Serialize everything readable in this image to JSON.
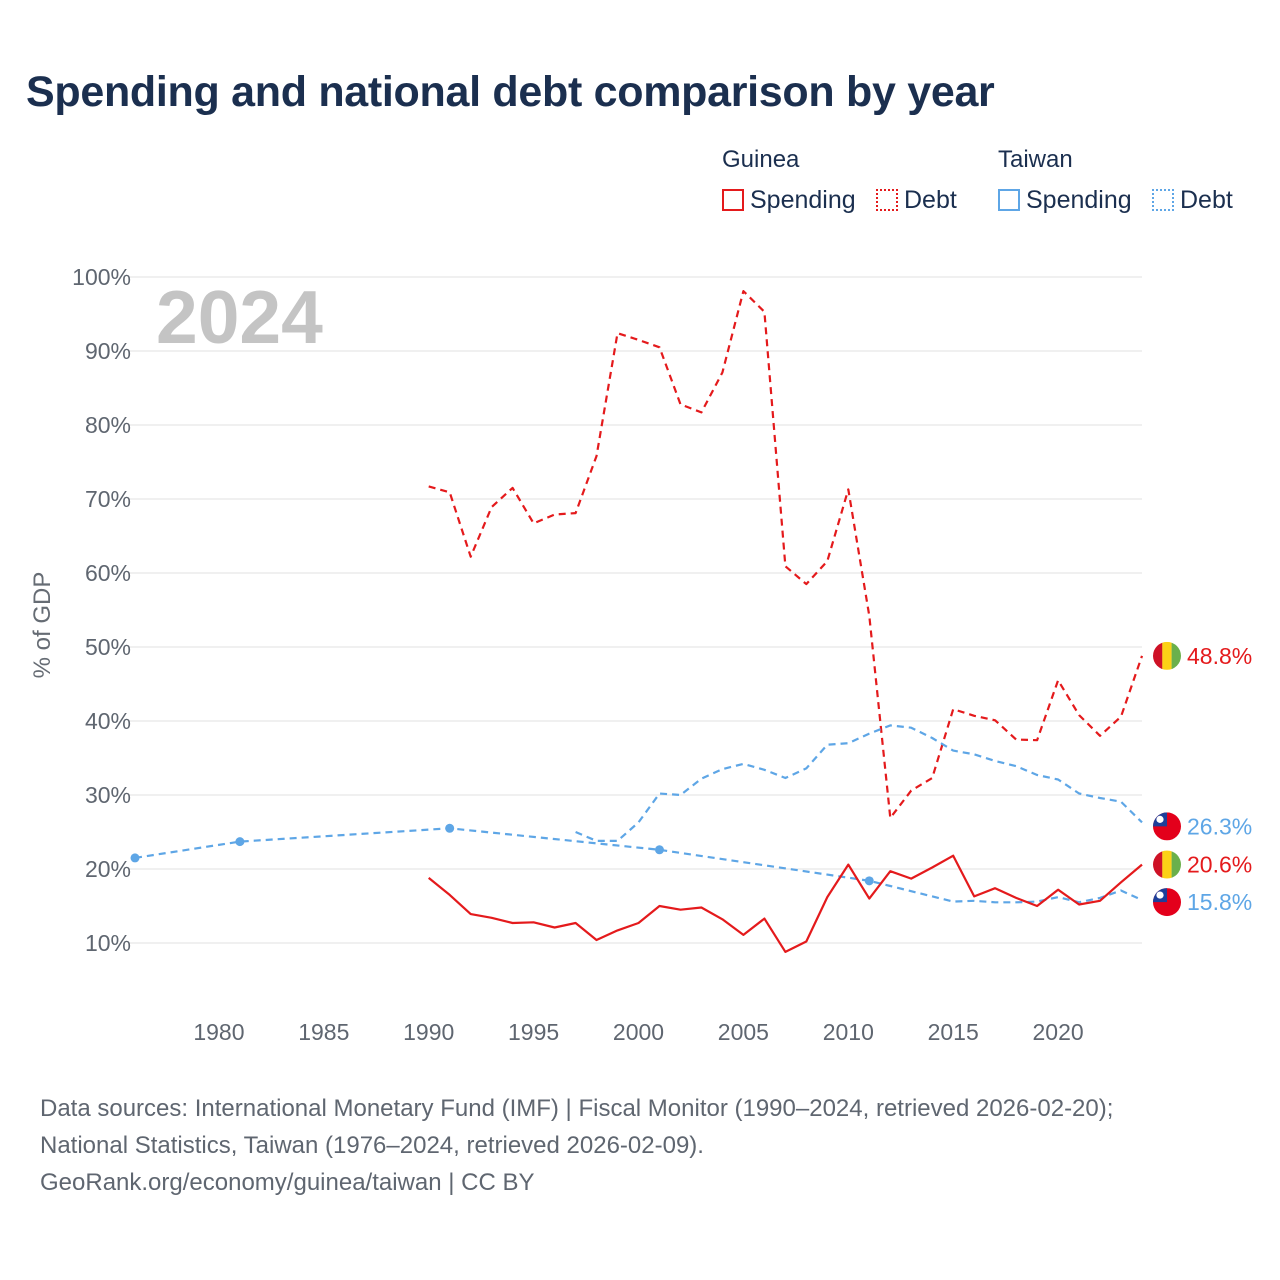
{
  "title": "Spending and national debt comparison by year",
  "legend": {
    "groups": [
      {
        "name": "Guinea",
        "color": "#e41a1c",
        "items": [
          {
            "label": "Spending",
            "style": "solid"
          },
          {
            "label": "Debt",
            "style": "dotted"
          }
        ]
      },
      {
        "name": "Taiwan",
        "color": "#5ea6e6",
        "items": [
          {
            "label": "Spending",
            "style": "solid"
          },
          {
            "label": "Debt",
            "style": "dotted"
          }
        ]
      }
    ]
  },
  "year_watermark": "2024",
  "source": {
    "line1": "Data sources: International Monetary Fund (IMF) | Fiscal Monitor (1990–2024, retrieved 2026-02-20);",
    "line2": "National Statistics, Taiwan (1976–2024, retrieved 2026-02-09).",
    "line3": "GeoRank.org/economy/guinea/taiwan | CC BY"
  },
  "chart_data": {
    "type": "line",
    "ylabel": "% of GDP",
    "xlabel": "",
    "xlim": [
      1976,
      2024
    ],
    "ylim": [
      0,
      100
    ],
    "x_ticks": [
      1980,
      1985,
      1990,
      1995,
      2000,
      2005,
      2010,
      2015,
      2020
    ],
    "x_tick_labels": [
      "1980",
      "1985",
      "1990",
      "1995",
      "2000",
      "2005",
      "2010",
      "2015",
      "2020"
    ],
    "y_ticks": [
      10,
      20,
      30,
      40,
      50,
      60,
      70,
      80,
      90,
      100
    ],
    "y_tick_labels": [
      "10%",
      "20%",
      "30%",
      "40%",
      "50%",
      "60%",
      "70%",
      "80%",
      "90%",
      "100%"
    ],
    "grid": true,
    "series": [
      {
        "name": "Guinea Debt",
        "country": "Guinea",
        "indicator": "Debt",
        "color": "#e41a1c",
        "dash": "dashed",
        "x": [
          1990,
          1991,
          1992,
          1993,
          1994,
          1995,
          1996,
          1997,
          1998,
          1999,
          2000,
          2001,
          2002,
          2003,
          2004,
          2005,
          2006,
          2007,
          2008,
          2009,
          2010,
          2011,
          2012,
          2013,
          2014,
          2015,
          2016,
          2017,
          2018,
          2019,
          2020,
          2021,
          2022,
          2023,
          2024
        ],
        "values": [
          71.7,
          70.9,
          62.2,
          68.9,
          71.5,
          66.7,
          67.9,
          68.1,
          75.8,
          92.4,
          91.5,
          90.5,
          82.8,
          81.7,
          87.1,
          98.1,
          95.3,
          60.9,
          58.5,
          61.6,
          71.3,
          54.2,
          26.9,
          30.6,
          32.3,
          41.6,
          40.7,
          40.1,
          37.5,
          37.4,
          45.5,
          40.8,
          38.0,
          40.6,
          48.8
        ],
        "end_label": "48.8%"
      },
      {
        "name": "Taiwan Debt",
        "country": "Taiwan",
        "indicator": "Debt",
        "color": "#5ea6e6",
        "dash": "dashed",
        "x": [
          1976,
          1981,
          1991,
          2001,
          2011,
          2015,
          2016,
          2017,
          2018,
          2019,
          2020,
          2021,
          2022,
          2023,
          2024
        ],
        "values": [
          21.5,
          23.7,
          25.5,
          22.6,
          18.4,
          15.6,
          15.7,
          15.5,
          15.5,
          15.6,
          16.2,
          15.5,
          16.1,
          17.1,
          15.8
        ],
        "markers": [
          1976,
          1981,
          1991,
          2001,
          2011
        ],
        "end_label": "15.8%"
      },
      {
        "name": "Taiwan Spending",
        "country": "Taiwan",
        "indicator": "Spending",
        "color": "#5ea6e6",
        "dash": "dashed",
        "x": [
          1997,
          1998,
          1999,
          2000,
          2001,
          2002,
          2003,
          2004,
          2005,
          2006,
          2007,
          2008,
          2009,
          2010,
          2011,
          2012,
          2013,
          2014,
          2015,
          2016,
          2017,
          2018,
          2019,
          2020,
          2021,
          2022,
          2023,
          2024
        ],
        "values": [
          25.0,
          23.8,
          23.8,
          26.3,
          30.2,
          30.0,
          32.2,
          33.5,
          34.2,
          33.4,
          32.3,
          33.6,
          36.8,
          37.0,
          38.3,
          39.4,
          39.1,
          37.7,
          36.0,
          35.5,
          34.6,
          33.9,
          32.7,
          32.1,
          30.2,
          29.6,
          29.1,
          26.3
        ],
        "end_label": "26.3%"
      },
      {
        "name": "Guinea Spending",
        "country": "Guinea",
        "indicator": "Spending",
        "color": "#e41a1c",
        "dash": "solid",
        "x": [
          1990,
          1991,
          1992,
          1993,
          1994,
          1995,
          1996,
          1997,
          1998,
          1999,
          2000,
          2001,
          2002,
          2003,
          2004,
          2005,
          2006,
          2007,
          2008,
          2009,
          2010,
          2011,
          2012,
          2013,
          2014,
          2015,
          2016,
          2017,
          2018,
          2019,
          2020,
          2021,
          2022,
          2023,
          2024
        ],
        "values": [
          18.8,
          16.5,
          13.9,
          13.4,
          12.7,
          12.8,
          12.1,
          12.7,
          10.4,
          11.7,
          12.7,
          15.0,
          14.5,
          14.8,
          13.2,
          11.1,
          13.3,
          8.8,
          10.2,
          16.2,
          20.6,
          16.0,
          19.7,
          18.7,
          20.2,
          21.8,
          16.3,
          17.4,
          16.1,
          15.0,
          17.2,
          15.2,
          15.7,
          18.2,
          20.6
        ],
        "end_label": "20.6%"
      }
    ]
  }
}
